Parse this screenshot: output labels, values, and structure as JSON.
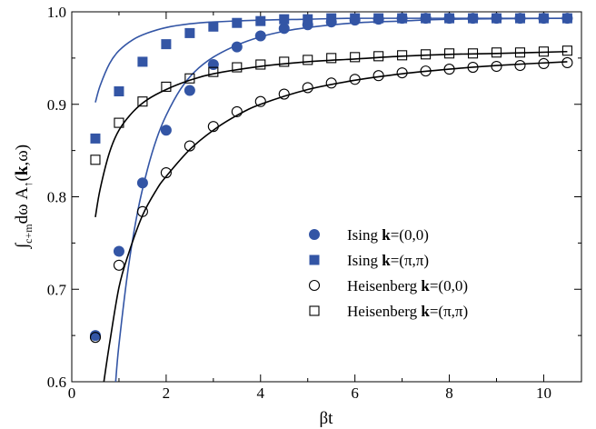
{
  "chart_data": {
    "type": "scatter",
    "title": "",
    "xlabel": "βt",
    "ylabel": "∫c+m dω A↑(k,ω)",
    "ylabel_parts": {
      "integral": "∫",
      "subscript": "c+m",
      "main": "dω A",
      "arrow": "↑",
      "paren_open": "(",
      "bold_k": "k",
      "rest": ",ω)"
    },
    "xlim": [
      0,
      10.8
    ],
    "ylim": [
      0.6,
      1.0
    ],
    "xticks": [
      0,
      2,
      4,
      6,
      8,
      10
    ],
    "yticks": [
      0.6,
      0.7,
      0.8,
      0.9,
      1.0
    ],
    "xtick_labels": [
      "0",
      "2",
      "4",
      "6",
      "8",
      "10"
    ],
    "ytick_labels": [
      "0.6",
      "0.7",
      "0.8",
      "0.9",
      "1.0"
    ],
    "legend_position": "center-right",
    "series": [
      {
        "name": "Ising k=(0,0)",
        "legend_prefix": "Ising ",
        "legend_bold": "k",
        "legend_suffix": "=(0,0)",
        "marker": "filled-circle",
        "color": "#3355a5",
        "x": [
          0.5,
          1.0,
          1.5,
          2.0,
          2.5,
          3.0,
          3.5,
          4.0,
          4.5,
          5.0,
          5.5,
          6.0,
          6.5,
          7.0,
          7.5,
          8.0,
          8.5,
          9.0,
          9.5,
          10.0,
          10.5
        ],
        "y": [
          0.65,
          0.741,
          0.815,
          0.872,
          0.915,
          0.943,
          0.962,
          0.974,
          0.982,
          0.986,
          0.989,
          0.991,
          0.992,
          0.993,
          0.993,
          0.993,
          0.993,
          0.993,
          0.993,
          0.993,
          0.993
        ]
      },
      {
        "name": "Ising k=(π,π)",
        "legend_prefix": "Ising ",
        "legend_bold": "k",
        "legend_suffix": "=(π,π)",
        "marker": "filled-square",
        "color": "#3355a5",
        "x": [
          0.5,
          1.0,
          1.5,
          2.0,
          2.5,
          3.0,
          3.5,
          4.0,
          4.5,
          5.0,
          5.5,
          6.0,
          6.5,
          7.0,
          7.5,
          8.0,
          8.5,
          9.0,
          9.5,
          10.0,
          10.5
        ],
        "y": [
          0.863,
          0.914,
          0.946,
          0.965,
          0.977,
          0.984,
          0.988,
          0.99,
          0.992,
          0.992,
          0.993,
          0.993,
          0.993,
          0.993,
          0.993,
          0.993,
          0.993,
          0.993,
          0.993,
          0.993,
          0.993
        ]
      },
      {
        "name": "Heisenberg k=(0,0)",
        "legend_prefix": "Heisenberg ",
        "legend_bold": "k",
        "legend_suffix": "=(0,0)",
        "marker": "open-circle",
        "color": "#000000",
        "x": [
          0.5,
          1.0,
          1.5,
          2.0,
          2.5,
          3.0,
          3.5,
          4.0,
          4.5,
          5.0,
          5.5,
          6.0,
          6.5,
          7.0,
          7.5,
          8.0,
          8.5,
          9.0,
          9.5,
          10.0,
          10.5
        ],
        "y": [
          0.648,
          0.726,
          0.784,
          0.826,
          0.855,
          0.876,
          0.892,
          0.903,
          0.911,
          0.918,
          0.923,
          0.927,
          0.931,
          0.934,
          0.936,
          0.938,
          0.94,
          0.941,
          0.942,
          0.944,
          0.945
        ]
      },
      {
        "name": "Heisenberg k=(π,π)",
        "legend_prefix": "Heisenberg ",
        "legend_bold": "k",
        "legend_suffix": "=(π,π)",
        "marker": "open-square",
        "color": "#000000",
        "x": [
          0.5,
          1.0,
          1.5,
          2.0,
          2.5,
          3.0,
          3.5,
          4.0,
          4.5,
          5.0,
          5.5,
          6.0,
          6.5,
          7.0,
          7.5,
          8.0,
          8.5,
          9.0,
          9.5,
          10.0,
          10.5
        ],
        "y": [
          0.84,
          0.88,
          0.903,
          0.919,
          0.928,
          0.935,
          0.94,
          0.943,
          0.946,
          0.948,
          0.95,
          0.951,
          0.952,
          0.953,
          0.954,
          0.955,
          0.955,
          0.956,
          0.956,
          0.957,
          0.958
        ]
      }
    ],
    "curves": [
      {
        "color": "#3355a5",
        "x": [
          0.5,
          0.6,
          0.8,
          1.0,
          1.3,
          1.6,
          2.0,
          2.5,
          3.0,
          4.0,
          5.0,
          6.0,
          8.0,
          10.5
        ],
        "y": [
          0.902,
          0.92,
          0.944,
          0.958,
          0.97,
          0.977,
          0.983,
          0.987,
          0.989,
          0.991,
          0.992,
          0.993,
          0.993,
          0.993
        ]
      },
      {
        "color": "#3355a5",
        "x": [
          0.93,
          1.0,
          1.2,
          1.4,
          1.6,
          1.8,
          2.0,
          2.3,
          2.6,
          3.0,
          3.5,
          4.0,
          4.5,
          5.0,
          6.0,
          7.0,
          8.0,
          10.5
        ],
        "y": [
          0.6,
          0.64,
          0.724,
          0.785,
          0.829,
          0.863,
          0.888,
          0.916,
          0.935,
          0.951,
          0.964,
          0.973,
          0.979,
          0.983,
          0.988,
          0.99,
          0.992,
          0.993
        ]
      },
      {
        "color": "#000000",
        "x": [
          0.5,
          0.6,
          0.8,
          1.0,
          1.3,
          1.6,
          2.0,
          2.5,
          3.0,
          4.0,
          5.0,
          6.0,
          7.0,
          8.0,
          9.0,
          10.5
        ],
        "y": [
          0.778,
          0.808,
          0.848,
          0.872,
          0.892,
          0.905,
          0.916,
          0.926,
          0.933,
          0.941,
          0.946,
          0.949,
          0.952,
          0.954,
          0.955,
          0.957
        ]
      },
      {
        "color": "#000000",
        "x": [
          0.68,
          0.8,
          1.0,
          1.2,
          1.5,
          1.8,
          2.0,
          2.5,
          3.0,
          3.5,
          4.0,
          5.0,
          6.0,
          7.0,
          8.0,
          9.0,
          10.5
        ],
        "y": [
          0.6,
          0.641,
          0.702,
          0.738,
          0.78,
          0.808,
          0.822,
          0.851,
          0.872,
          0.888,
          0.9,
          0.916,
          0.926,
          0.933,
          0.938,
          0.942,
          0.946
        ]
      }
    ]
  }
}
